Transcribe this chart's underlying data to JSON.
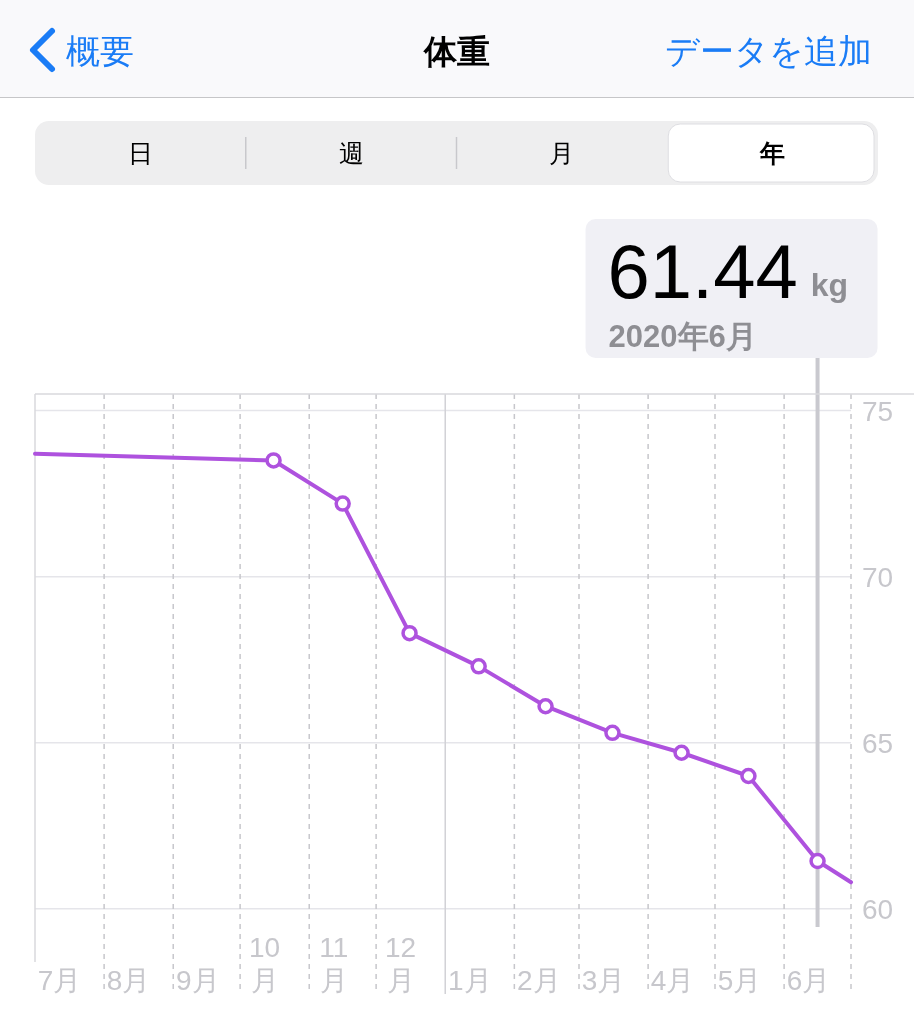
{
  "chart_data": {
    "type": "line",
    "title": "体重",
    "annotations": [
      "概要",
      "データを追加",
      "日",
      "週",
      "月",
      "年",
      "61.44",
      "kg",
      "2020年6月"
    ],
    "x": [
      "2019-07-01",
      "2019-10-16",
      "2019-11-16",
      "2019-12-16",
      "2020-01-16",
      "2020-02-15",
      "2020-03-16",
      "2020-04-16",
      "2020-05-16",
      "2020-06-16",
      "2020-07-01"
    ],
    "series": [
      {
        "color": "#ae52de",
        "values": [
          73.7,
          73.5,
          72.2,
          68.3,
          67.3,
          66.1,
          65.3,
          64.7,
          64.0,
          61.44,
          60.8
        ]
      }
    ],
    "xlim": [
      "2019-07-01",
      "2020-07-01"
    ],
    "xticks": [
      {
        "value": "2019-07-12",
        "label": "7月"
      },
      {
        "value": "2019-08-01",
        "label": null
      },
      {
        "value": "2019-08-12",
        "label": "8月"
      },
      {
        "value": "2019-09-01",
        "label": null
      },
      {
        "value": "2019-09-12",
        "label": "9月"
      },
      {
        "value": "2019-10-01",
        "label": null
      },
      {
        "value": "2019-10-12",
        "label": "10月"
      },
      {
        "value": "2019-11-01",
        "label": null
      },
      {
        "value": "2019-11-12",
        "label": "11月"
      },
      {
        "value": "2019-12-01",
        "label": null
      },
      {
        "value": "2019-12-12",
        "label": "12月"
      },
      {
        "value": "2020-01-12",
        "label": "1月"
      },
      {
        "value": "2020-02-01",
        "label": null
      },
      {
        "value": "2020-02-12",
        "label": "2月"
      },
      {
        "value": "2020-03-01",
        "label": null
      },
      {
        "value": "2020-03-12",
        "label": "3月"
      },
      {
        "value": "2020-04-01",
        "label": null
      },
      {
        "value": "2020-04-12",
        "label": "4月"
      },
      {
        "value": "2020-05-01",
        "label": null
      },
      {
        "value": "2020-05-12",
        "label": "5月"
      },
      {
        "value": "2020-06-01",
        "label": null
      },
      {
        "value": "2020-06-12",
        "label": "6月"
      },
      {
        "value": "2020-07-01",
        "label": null
      }
    ],
    "ylim": [
      58.4,
      75.5
    ],
    "yticks": [
      60,
      65,
      70,
      75
    ],
    "grid": true,
    "marker": "circle",
    "line_style": "solid",
    "ref_lines": [
      {
        "axis": "x",
        "value": "2020-01-01",
        "color": "#d1d1d6",
        "line_style": "solid"
      },
      {
        "axis": "x",
        "value": "2020-06-16",
        "color": "#c9c9cf",
        "line_style": "solid"
      }
    ]
  }
}
